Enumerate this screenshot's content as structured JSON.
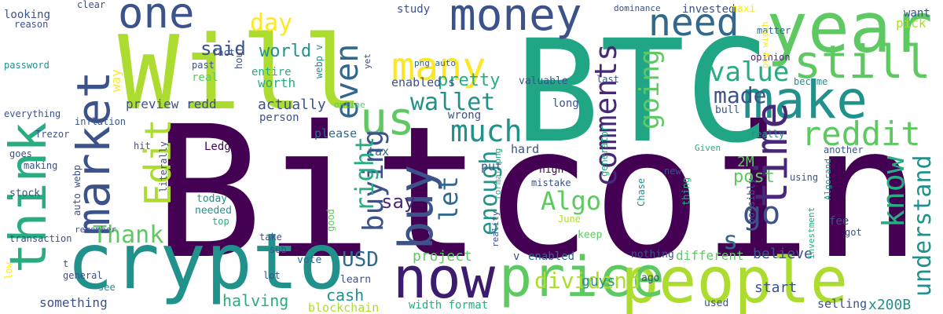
{
  "palette": {
    "purple": "#440154",
    "indigo": "#3b528b",
    "teal": "#21918c",
    "green": "#27ad81",
    "lime": "#5ec962",
    "yellowgreen": "#addc30",
    "yellow": "#fde725",
    "slate": "#31688e",
    "violet": "#482878"
  },
  "words": [
    {
      "text": "Bitcoin",
      "color": "#440154"
    },
    {
      "text": "BTC",
      "color": "#21a685"
    },
    {
      "text": "Will",
      "color": "#addc30"
    },
    {
      "text": "crypto",
      "color": "#21918c"
    },
    {
      "text": "people",
      "color": "#addc30"
    },
    {
      "text": "price",
      "color": "#5ec962"
    },
    {
      "text": "year",
      "color": "#5ec962"
    },
    {
      "text": "now",
      "color": "#3b1c6e"
    },
    {
      "text": "think",
      "color": "#27ad81"
    },
    {
      "text": "market",
      "color": "#3b528b"
    },
    {
      "text": "make",
      "color": "#21918c"
    },
    {
      "text": "one",
      "color": "#3b528b"
    },
    {
      "text": "money",
      "color": "#3b528b"
    },
    {
      "text": "buy",
      "color": "#3b528b"
    },
    {
      "text": "many",
      "color": "#fde725"
    },
    {
      "text": "still",
      "color": "#5ec962"
    },
    {
      "text": "need",
      "color": "#31688e"
    },
    {
      "text": "time",
      "color": "#482878"
    },
    {
      "text": "us",
      "color": "#5ec962"
    },
    {
      "text": "Edit",
      "color": "#addc30"
    },
    {
      "text": "reddit",
      "color": "#5ec962"
    },
    {
      "text": "value",
      "color": "#27ad81"
    },
    {
      "text": "even",
      "color": "#31688e"
    },
    {
      "text": "wallet",
      "color": "#21918c"
    },
    {
      "text": "much",
      "color": "#21918c"
    },
    {
      "text": "made",
      "color": "#3b528b"
    },
    {
      "text": "going",
      "color": "#5ec962"
    },
    {
      "text": "comments",
      "color": "#482878"
    },
    {
      "text": "know",
      "color": "#27ad81"
    },
    {
      "text": "Algo",
      "color": "#5ec962"
    },
    {
      "text": "buying",
      "color": "#3b528b"
    },
    {
      "text": "right",
      "color": "#27ad81"
    },
    {
      "text": "go",
      "color": "#3b528b"
    },
    {
      "text": "let",
      "color": "#31688e"
    },
    {
      "text": "enough",
      "color": "#21918c"
    },
    {
      "text": "Thank",
      "color": "#5ec962"
    },
    {
      "text": "understand",
      "color": "#21918c"
    },
    {
      "text": "s",
      "color": "#31688e"
    },
    {
      "text": "USD",
      "color": "#31688e"
    },
    {
      "text": "dividend",
      "color": "#addc30"
    },
    {
      "text": "day",
      "color": "#fde725"
    },
    {
      "text": "said",
      "color": "#3b528b"
    },
    {
      "text": "world",
      "color": "#21918c"
    },
    {
      "text": "pretty",
      "color": "#27ad81"
    },
    {
      "text": "say",
      "color": "#482878"
    },
    {
      "text": "post",
      "color": "#5ec962"
    },
    {
      "text": "2M",
      "color": "#5ec962"
    },
    {
      "text": "halving",
      "color": "#27ad81"
    },
    {
      "text": "cash",
      "color": "#21918c"
    },
    {
      "text": "project",
      "color": "#5ec962"
    },
    {
      "text": "believe",
      "color": "#3b528b"
    },
    {
      "text": "guys",
      "color": "#21918c"
    },
    {
      "text": "x200B",
      "color": "#21918c"
    },
    {
      "text": "start",
      "color": "#3b528b"
    },
    {
      "text": "something",
      "color": "#3b528b"
    },
    {
      "text": "blockchain",
      "color": "#addc30"
    },
    {
      "text": "different",
      "color": "#5ec962"
    },
    {
      "text": "selling",
      "color": "#3b528b"
    },
    {
      "text": "actually",
      "color": "#3b528b"
    },
    {
      "text": "preview redd",
      "color": "#3b528b"
    },
    {
      "text": "enabled s",
      "color": "#3b528b"
    },
    {
      "text": "Ledger",
      "color": "#440154"
    },
    {
      "text": "tax",
      "color": "#31688e"
    },
    {
      "text": "hard",
      "color": "#3b528b"
    },
    {
      "text": "put",
      "color": "#3b528b"
    },
    {
      "text": "wrong",
      "color": "#3b528b"
    },
    {
      "text": "please",
      "color": "#31688e"
    },
    {
      "text": "person",
      "color": "#3b528b"
    },
    {
      "text": "entire",
      "color": "#27ad81"
    },
    {
      "text": "worth",
      "color": "#27ad81"
    },
    {
      "text": "real",
      "color": "#5ec962"
    },
    {
      "text": "past",
      "color": "#3b528b"
    },
    {
      "text": "way",
      "color": "#fde725"
    },
    {
      "text": "fact",
      "color": "#3b528b"
    },
    {
      "text": "hour",
      "color": "#3b528b"
    },
    {
      "text": "webp v",
      "color": "#21918c"
    },
    {
      "text": "png auto",
      "color": "#31688e"
    },
    {
      "text": "study",
      "color": "#3b528b"
    },
    {
      "text": "invested",
      "color": "#3b528b"
    },
    {
      "text": "dominance",
      "color": "#3b528b"
    },
    {
      "text": "maxi",
      "color": "#fde725"
    },
    {
      "text": "want",
      "color": "#3b528b"
    },
    {
      "text": "pick",
      "color": "#addc30"
    },
    {
      "text": "matter",
      "color": "#31688e"
    },
    {
      "text": "valuable",
      "color": "#3b528b"
    },
    {
      "text": "last",
      "color": "#3b528b"
    },
    {
      "text": "opinion",
      "color": "#482878"
    },
    {
      "text": "become",
      "color": "#21918c"
    },
    {
      "text": "another",
      "color": "#3b528b"
    },
    {
      "text": "bull",
      "color": "#3b528b"
    },
    {
      "text": "really",
      "color": "#21918c"
    },
    {
      "text": "long",
      "color": "#3b528b"
    },
    {
      "text": "generator",
      "color": "#27ad81"
    },
    {
      "text": "Given",
      "color": "#27ad81"
    },
    {
      "text": "high",
      "color": "#440154"
    },
    {
      "text": "mistake",
      "color": "#3b528b"
    },
    {
      "text": "new",
      "color": "#3b528b"
    },
    {
      "text": "thing",
      "color": "#27ad81"
    },
    {
      "text": "possibly",
      "color": "#3b528b"
    },
    {
      "text": "Chase",
      "color": "#21918c"
    },
    {
      "text": "Algorand",
      "color": "#21918c"
    },
    {
      "text": "fee",
      "color": "#3b528b"
    },
    {
      "text": "investment",
      "color": "#27ad81"
    },
    {
      "text": "got",
      "color": "#3b528b"
    },
    {
      "text": "keep",
      "color": "#5ec962"
    },
    {
      "text": "nothing",
      "color": "#3b528b"
    },
    {
      "text": "enabled",
      "color": "#31688e"
    },
    {
      "text": "v",
      "color": "#3b528b"
    },
    {
      "text": "June",
      "color": "#addc30"
    },
    {
      "text": "ago",
      "color": "#3b528b"
    },
    {
      "text": "used",
      "color": "#3b528b"
    },
    {
      "text": "width format",
      "color": "#27ad81"
    },
    {
      "text": "learn",
      "color": "#3b528b"
    },
    {
      "text": "vote",
      "color": "#31688e"
    },
    {
      "text": "lot",
      "color": "#3b528b"
    },
    {
      "text": "sub",
      "color": "#3b528b"
    },
    {
      "text": "take",
      "color": "#3b528b"
    },
    {
      "text": "needed",
      "color": "#21918c"
    },
    {
      "text": "top",
      "color": "#27ad81"
    },
    {
      "text": "today",
      "color": "#21918c"
    },
    {
      "text": "good",
      "color": "#5ec962"
    },
    {
      "text": "literally",
      "color": "#3b528b"
    },
    {
      "text": "auto webp",
      "color": "#3b528b"
    },
    {
      "text": "stock",
      "color": "#3b528b"
    },
    {
      "text": "goes",
      "color": "#3b528b"
    },
    {
      "text": "making",
      "color": "#3b528b"
    },
    {
      "text": "transaction",
      "color": "#3b528b"
    },
    {
      "text": "remember",
      "color": "#3b528b"
    },
    {
      "text": "t",
      "color": "#3b528b"
    },
    {
      "text": "general",
      "color": "#3b528b"
    },
    {
      "text": "see",
      "color": "#21918c"
    },
    {
      "text": "low",
      "color": "#fde725"
    },
    {
      "text": "everything",
      "color": "#3b528b"
    },
    {
      "text": "Trezor",
      "color": "#3b528b"
    },
    {
      "text": "inflation",
      "color": "#3b528b"
    },
    {
      "text": "hit",
      "color": "#3b528b"
    },
    {
      "text": "password",
      "color": "#21918c"
    },
    {
      "text": "reason",
      "color": "#3b528b"
    },
    {
      "text": "looking",
      "color": "#3b528b"
    },
    {
      "text": "clear",
      "color": "#3b528b"
    },
    {
      "text": "online",
      "color": "#5ec962"
    },
    {
      "text": "yet",
      "color": "#3b528b"
    },
    {
      "text": "png width",
      "color": "#fde725"
    },
    {
      "text": "format png",
      "color": "#27ad81"
    },
    {
      "text": "reality",
      "color": "#3b528b"
    },
    {
      "text": "using",
      "color": "#3b528b"
    }
  ]
}
